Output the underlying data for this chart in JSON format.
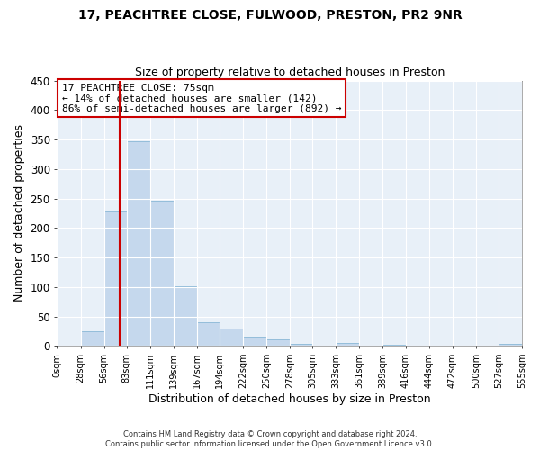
{
  "title": "17, PEACHTREE CLOSE, FULWOOD, PRESTON, PR2 9NR",
  "subtitle": "Size of property relative to detached houses in Preston",
  "xlabel": "Distribution of detached houses by size in Preston",
  "ylabel": "Number of detached properties",
  "bar_color": "#c5d8ed",
  "bar_edgecolor": "#7aaed0",
  "axes_background_color": "#e8f0f8",
  "fig_background_color": "#ffffff",
  "grid_color": "#ffffff",
  "bin_edges": [
    0,
    28,
    56,
    83,
    111,
    139,
    167,
    194,
    222,
    250,
    278,
    305,
    333,
    361,
    389,
    416,
    444,
    472,
    500,
    527,
    555
  ],
  "bar_heights": [
    0,
    25,
    228,
    347,
    247,
    101,
    40,
    30,
    15,
    11,
    4,
    0,
    5,
    0,
    2,
    0,
    0,
    0,
    0,
    3
  ],
  "tick_labels": [
    "0sqm",
    "28sqm",
    "56sqm",
    "83sqm",
    "111sqm",
    "139sqm",
    "167sqm",
    "194sqm",
    "222sqm",
    "250sqm",
    "278sqm",
    "305sqm",
    "333sqm",
    "361sqm",
    "389sqm",
    "416sqm",
    "444sqm",
    "472sqm",
    "500sqm",
    "527sqm",
    "555sqm"
  ],
  "ylim": [
    0,
    450
  ],
  "yticks": [
    0,
    50,
    100,
    150,
    200,
    250,
    300,
    350,
    400,
    450
  ],
  "vline_x": 75,
  "vline_color": "#cc0000",
  "annotation_title": "17 PEACHTREE CLOSE: 75sqm",
  "annotation_line1": "← 14% of detached houses are smaller (142)",
  "annotation_line2": "86% of semi-detached houses are larger (892) →",
  "annotation_box_edgecolor": "#cc0000",
  "footer_line1": "Contains HM Land Registry data © Crown copyright and database right 2024.",
  "footer_line2": "Contains public sector information licensed under the Open Government Licence v3.0."
}
